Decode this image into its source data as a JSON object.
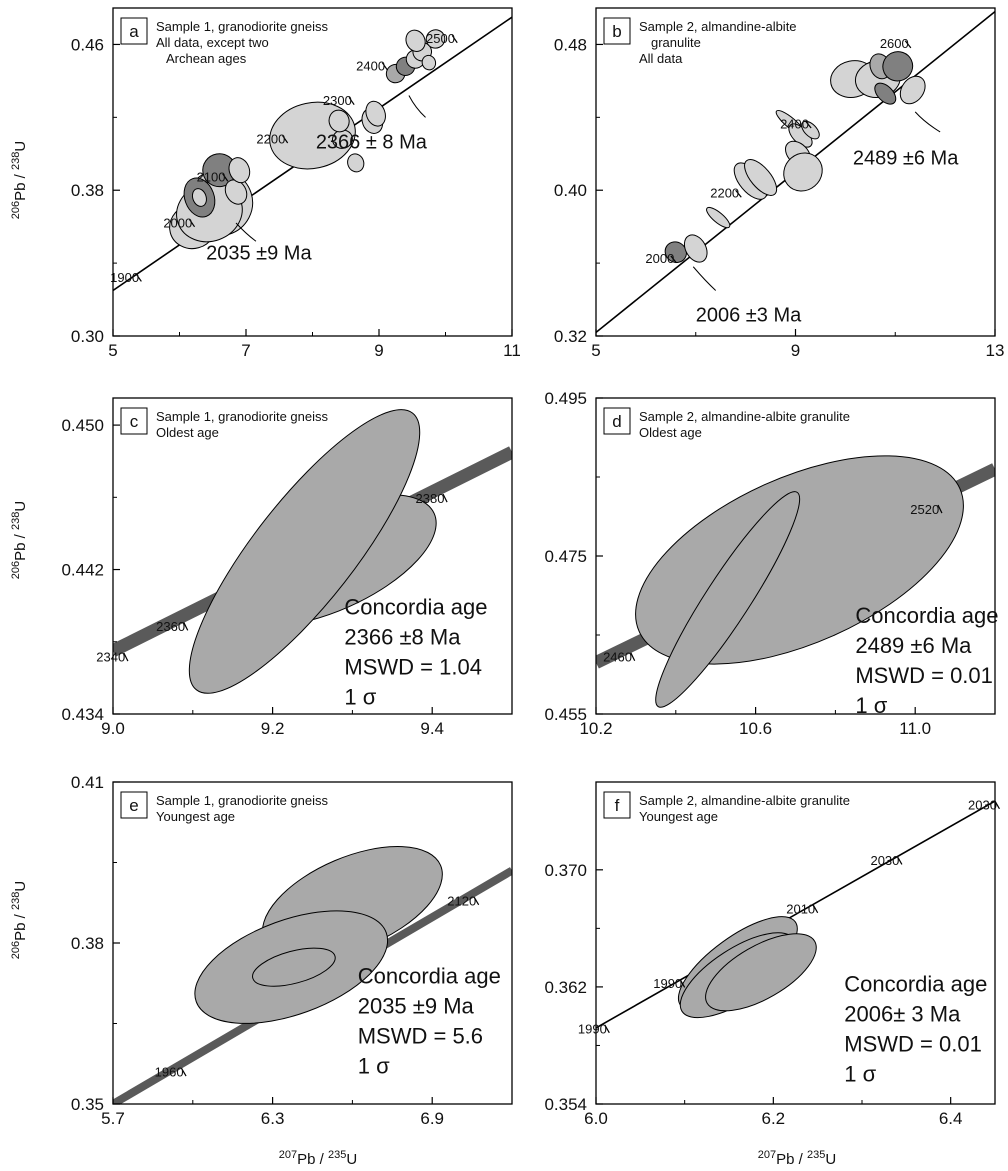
{
  "ylabel": {
    "sup": "206",
    "main": "Pb / ",
    "sup2": "238",
    "end": "U"
  },
  "xlabel": {
    "sup": "207",
    "main": "Pb / ",
    "sup2": "235",
    "end": "U"
  },
  "colors": {
    "ellipse_light": "#d4d4d4",
    "ellipse_mid": "#a9a9a9",
    "ellipse_dark": "#808080",
    "band": "#5a5a5a",
    "stroke": "#000000"
  },
  "chart_data": [
    {
      "id": "a",
      "type": "scatter",
      "letter": "a",
      "title_lines": [
        "Sample 1, granodiorite gneiss",
        "All data, except two",
        "Archean ages"
      ],
      "xlim": [
        5,
        11
      ],
      "ylim": [
        0.3,
        0.48
      ],
      "xticks": [
        "5",
        "7",
        "9",
        "11"
      ],
      "yticks": [
        "0.30",
        "0.38",
        "0.46"
      ],
      "xtick_values": [
        5,
        7,
        9,
        11
      ],
      "ytick_values": [
        0.3,
        0.38,
        0.46
      ],
      "concordia": {
        "style": "line",
        "points": [
          [
            5,
            0.325
          ],
          [
            11,
            0.475
          ]
        ]
      },
      "age_ticks": [
        {
          "label": "1900",
          "x": 5.35,
          "y": 0.334
        },
        {
          "label": "2000",
          "x": 6.15,
          "y": 0.364
        },
        {
          "label": "2100",
          "x": 6.65,
          "y": 0.389
        },
        {
          "label": "2200",
          "x": 7.55,
          "y": 0.41
        },
        {
          "label": "2300",
          "x": 8.55,
          "y": 0.431
        },
        {
          "label": "2400",
          "x": 9.05,
          "y": 0.45
        },
        {
          "label": "2500",
          "x": 10.1,
          "y": 0.465
        }
      ],
      "ellipses": [
        {
          "x": 6.6,
          "y": 0.373,
          "rx": 0.5,
          "ry": 0.018,
          "rot": -18,
          "shade": "light"
        },
        {
          "x": 6.2,
          "y": 0.36,
          "rx": 0.35,
          "ry": 0.012,
          "rot": -15,
          "shade": "light"
        },
        {
          "x": 6.45,
          "y": 0.368,
          "rx": 0.5,
          "ry": 0.016,
          "rot": -20,
          "shade": "light"
        },
        {
          "x": 6.3,
          "y": 0.376,
          "rx": 0.22,
          "ry": 0.011,
          "rot": -20,
          "shade": "dark"
        },
        {
          "x": 6.3,
          "y": 0.376,
          "rx": 0.1,
          "ry": 0.005,
          "rot": -20,
          "shade": "light"
        },
        {
          "x": 6.6,
          "y": 0.391,
          "rx": 0.25,
          "ry": 0.009,
          "rot": -10,
          "shade": "dark"
        },
        {
          "x": 6.85,
          "y": 0.379,
          "rx": 0.15,
          "ry": 0.007,
          "rot": -30,
          "shade": "light"
        },
        {
          "x": 6.9,
          "y": 0.391,
          "rx": 0.15,
          "ry": 0.007,
          "rot": -20,
          "shade": "light"
        },
        {
          "x": 8.0,
          "y": 0.41,
          "rx": 0.65,
          "ry": 0.018,
          "rot": -12,
          "shade": "light"
        },
        {
          "x": 8.45,
          "y": 0.408,
          "rx": 0.15,
          "ry": 0.005,
          "rot": -15,
          "shade": "light"
        },
        {
          "x": 8.4,
          "y": 0.418,
          "rx": 0.15,
          "ry": 0.006,
          "rot": -15,
          "shade": "light"
        },
        {
          "x": 8.9,
          "y": 0.418,
          "rx": 0.15,
          "ry": 0.007,
          "rot": -20,
          "shade": "light"
        },
        {
          "x": 8.95,
          "y": 0.422,
          "rx": 0.14,
          "ry": 0.007,
          "rot": -20,
          "shade": "light"
        },
        {
          "x": 8.65,
          "y": 0.395,
          "rx": 0.12,
          "ry": 0.005,
          "rot": -20,
          "shade": "light"
        },
        {
          "x": 9.25,
          "y": 0.444,
          "rx": 0.14,
          "ry": 0.005,
          "rot": -25,
          "shade": "mid"
        },
        {
          "x": 9.4,
          "y": 0.448,
          "rx": 0.14,
          "ry": 0.005,
          "rot": -25,
          "shade": "dark"
        },
        {
          "x": 9.55,
          "y": 0.452,
          "rx": 0.14,
          "ry": 0.005,
          "rot": -25,
          "shade": "light"
        },
        {
          "x": 9.65,
          "y": 0.456,
          "rx": 0.14,
          "ry": 0.005,
          "rot": -25,
          "shade": "light"
        },
        {
          "x": 9.55,
          "y": 0.462,
          "rx": 0.14,
          "ry": 0.006,
          "rot": -25,
          "shade": "light"
        },
        {
          "x": 9.85,
          "y": 0.463,
          "rx": 0.14,
          "ry": 0.005,
          "rot": -25,
          "shade": "light"
        },
        {
          "x": 9.75,
          "y": 0.45,
          "rx": 0.1,
          "ry": 0.004,
          "rot": -20,
          "shade": "light"
        }
      ],
      "annotations": [
        {
          "text": "2366 ± 8 Ma",
          "x": 8.05,
          "y": 0.403
        },
        {
          "text": "2035 ±9 Ma",
          "x": 6.4,
          "y": 0.342
        }
      ],
      "leaders": [
        [
          [
            9.45,
            0.432
          ],
          [
            9.55,
            0.425
          ],
          [
            9.7,
            0.42
          ]
        ],
        [
          [
            6.85,
            0.362
          ],
          [
            7.0,
            0.356
          ],
          [
            7.15,
            0.352
          ]
        ]
      ]
    },
    {
      "id": "b",
      "type": "scatter",
      "letter": "b",
      "title_lines": [
        "Sample 2, almandine-albite",
        "granulite",
        "All data"
      ],
      "xlim": [
        5,
        13
      ],
      "ylim": [
        0.32,
        0.5
      ],
      "xticks": [
        "5",
        "9",
        "13"
      ],
      "yticks": [
        "0.32",
        "0.40",
        "0.48"
      ],
      "xtick_values": [
        5,
        9,
        13
      ],
      "ytick_values": [
        0.32,
        0.4,
        0.48
      ],
      "concordia": {
        "style": "line",
        "points": [
          [
            5,
            0.322
          ],
          [
            13,
            0.498
          ]
        ]
      },
      "age_ticks": [
        {
          "label": "2000",
          "x": 6.5,
          "y": 0.364
        },
        {
          "label": "2200",
          "x": 7.8,
          "y": 0.4
        },
        {
          "label": "2400",
          "x": 9.2,
          "y": 0.438
        },
        {
          "label": "2600",
          "x": 11.2,
          "y": 0.482
        }
      ],
      "ellipses": [
        {
          "x": 6.6,
          "y": 0.366,
          "rx": 0.2,
          "ry": 0.006,
          "rot": -55,
          "shade": "dark"
        },
        {
          "x": 7.0,
          "y": 0.368,
          "rx": 0.2,
          "ry": 0.008,
          "rot": -30,
          "shade": "light"
        },
        {
          "x": 7.45,
          "y": 0.385,
          "rx": 0.1,
          "ry": 0.008,
          "rot": -50,
          "shade": "light"
        },
        {
          "x": 8.1,
          "y": 0.405,
          "rx": 0.22,
          "ry": 0.012,
          "rot": -40,
          "shade": "light"
        },
        {
          "x": 8.3,
          "y": 0.407,
          "rx": 0.2,
          "ry": 0.012,
          "rot": -40,
          "shade": "light"
        },
        {
          "x": 8.9,
          "y": 0.437,
          "rx": 0.1,
          "ry": 0.01,
          "rot": -50,
          "shade": "light"
        },
        {
          "x": 9.1,
          "y": 0.43,
          "rx": 0.15,
          "ry": 0.008,
          "rot": -45,
          "shade": "light"
        },
        {
          "x": 9.3,
          "y": 0.433,
          "rx": 0.12,
          "ry": 0.006,
          "rot": -45,
          "shade": "light"
        },
        {
          "x": 9.05,
          "y": 0.42,
          "rx": 0.2,
          "ry": 0.008,
          "rot": -45,
          "shade": "light"
        },
        {
          "x": 9.15,
          "y": 0.41,
          "rx": 0.4,
          "ry": 0.01,
          "rot": -40,
          "shade": "light"
        },
        {
          "x": 10.15,
          "y": 0.461,
          "rx": 0.45,
          "ry": 0.01,
          "rot": -12,
          "shade": "light"
        },
        {
          "x": 10.65,
          "y": 0.461,
          "rx": 0.45,
          "ry": 0.01,
          "rot": -10,
          "shade": "light"
        },
        {
          "x": 10.7,
          "y": 0.468,
          "rx": 0.2,
          "ry": 0.007,
          "rot": -20,
          "shade": "mid"
        },
        {
          "x": 11.05,
          "y": 0.468,
          "rx": 0.3,
          "ry": 0.008,
          "rot": -25,
          "shade": "dark"
        },
        {
          "x": 10.8,
          "y": 0.453,
          "rx": 0.15,
          "ry": 0.007,
          "rot": -45,
          "shade": "dark"
        },
        {
          "x": 11.35,
          "y": 0.455,
          "rx": 0.3,
          "ry": 0.006,
          "rot": -55,
          "shade": "light"
        }
      ],
      "annotations": [
        {
          "text": "2489 ±6 Ma",
          "x": 10.15,
          "y": 0.414
        },
        {
          "text": "2006 ±3 Ma",
          "x": 7.0,
          "y": 0.328
        }
      ],
      "leaders": [
        [
          [
            11.4,
            0.443
          ],
          [
            11.6,
            0.437
          ],
          [
            11.9,
            0.432
          ]
        ],
        [
          [
            6.95,
            0.358
          ],
          [
            7.2,
            0.35
          ],
          [
            7.4,
            0.345
          ]
        ]
      ]
    },
    {
      "id": "c",
      "type": "scatter",
      "letter": "c",
      "title_lines": [
        "Sample 1, granodiorite gneiss",
        "Oldest age"
      ],
      "xlim": [
        9.0,
        9.5
      ],
      "ylim": [
        0.434,
        0.4515
      ],
      "xticks": [
        "9.0",
        "9.2",
        "9.4"
      ],
      "yticks": [
        "0.434",
        "0.442",
        "0.450"
      ],
      "xtick_values": [
        9.0,
        9.2,
        9.4
      ],
      "ytick_values": [
        0.434,
        0.442,
        0.45
      ],
      "concordia": {
        "style": "band",
        "width": 13,
        "points": [
          [
            9.0,
            0.4375
          ],
          [
            9.5,
            0.4485
          ]
        ]
      },
      "age_ticks": [
        {
          "label": "2340",
          "x": 9.01,
          "y": 0.4377
        },
        {
          "label": "2360",
          "x": 9.085,
          "y": 0.4394
        },
        {
          "label": "2380",
          "x": 9.41,
          "y": 0.4465
        }
      ],
      "ellipses": [
        {
          "x": 9.27,
          "y": 0.4425,
          "rx": 0.145,
          "ry": 0.0028,
          "rot": -24,
          "shade": "mid"
        },
        {
          "x": 9.24,
          "y": 0.443,
          "rx": 0.22,
          "ry": 0.0028,
          "rot": -52,
          "shade": "mid"
        }
      ],
      "annotations": [],
      "leaders": [],
      "stats": [
        "Concordia age",
        "2366 ±8 Ma",
        "MSWD = 1.04",
        "1 σ"
      ],
      "stats_pos": {
        "x": 9.29,
        "y": 0.4395
      }
    },
    {
      "id": "d",
      "type": "scatter",
      "letter": "d",
      "title_lines": [
        "Sample 2, almandine-albite granulite",
        "Oldest age"
      ],
      "xlim": [
        10.2,
        11.2
      ],
      "ylim": [
        0.455,
        0.495
      ],
      "xticks": [
        "10.2",
        "10.6",
        "11.0"
      ],
      "yticks": [
        "0.455",
        "0.475",
        "0.495"
      ],
      "xtick_values": [
        10.2,
        10.6,
        11.0
      ],
      "ytick_values": [
        0.455,
        0.475,
        0.495
      ],
      "concordia": {
        "style": "band",
        "width": 13,
        "points": [
          [
            10.2,
            0.4615
          ],
          [
            11.2,
            0.486
          ]
        ]
      },
      "age_ticks": [
        {
          "label": "2460",
          "x": 10.28,
          "y": 0.4635
        },
        {
          "label": "2520",
          "x": 11.05,
          "y": 0.4822
        }
      ],
      "ellipses": [
        {
          "x": 10.71,
          "y": 0.4745,
          "rx": 0.44,
          "ry": 0.0105,
          "rot": -24,
          "shade": "mid"
        },
        {
          "x": 10.53,
          "y": 0.4695,
          "rx": 0.32,
          "ry": 0.0028,
          "rot": -57,
          "shade": "mid"
        }
      ],
      "annotations": [],
      "leaders": [],
      "stats": [
        "Concordia age",
        "2489 ±6 Ma",
        "MSWD = 0.01",
        "1 σ"
      ],
      "stats_pos": {
        "x": 10.85,
        "y": 0.4665
      }
    },
    {
      "id": "e",
      "type": "scatter",
      "letter": "e",
      "title_lines": [
        "Sample 1, granodiorite gneiss",
        "Youngest age"
      ],
      "xlim": [
        5.7,
        7.2
      ],
      "ylim": [
        0.35,
        0.41
      ],
      "xticks": [
        "5.7",
        "6.3",
        "6.9"
      ],
      "yticks": [
        "0.35",
        "0.38",
        "0.41"
      ],
      "xtick_values": [
        5.7,
        6.3,
        6.9
      ],
      "ytick_values": [
        0.35,
        0.38,
        0.41
      ],
      "concordia": {
        "style": "band",
        "width": 8,
        "points": [
          [
            5.7,
            0.35
          ],
          [
            7.2,
            0.3935
          ]
        ]
      },
      "age_ticks": [
        {
          "label": "1960",
          "x": 5.95,
          "y": 0.3573
        },
        {
          "label": "2120",
          "x": 7.05,
          "y": 0.3892
        }
      ],
      "ellipses": [
        {
          "x": 6.6,
          "y": 0.3875,
          "rx": 0.36,
          "ry": 0.0085,
          "rot": -23,
          "shade": "mid"
        },
        {
          "x": 6.37,
          "y": 0.3755,
          "rx": 0.38,
          "ry": 0.0088,
          "rot": -20,
          "shade": "mid"
        },
        {
          "x": 6.38,
          "y": 0.3755,
          "rx": 0.16,
          "ry": 0.003,
          "rot": -15,
          "shade": "mid"
        }
      ],
      "annotations": [],
      "leaders": [],
      "stats": [
        "Concordia age",
        "2035 ±9 Ma",
        "MSWD = 5.6",
        "1 σ"
      ],
      "stats_pos": {
        "x": 6.62,
        "y": 0.3725
      }
    },
    {
      "id": "f",
      "type": "scatter",
      "letter": "f",
      "title_lines": [
        "Sample 2, almandine-albite granulite",
        "Youngest age"
      ],
      "xlim": [
        6.0,
        6.45
      ],
      "ylim": [
        0.354,
        0.376
      ],
      "xticks": [
        "6.0",
        "6.2",
        "6.4"
      ],
      "yticks": [
        "0.354",
        "0.362",
        "0.370"
      ],
      "xtick_values": [
        6.0,
        6.2,
        6.4
      ],
      "ytick_values": [
        0.354,
        0.362,
        0.37
      ],
      "concordia": {
        "style": "line",
        "points": [
          [
            6.0,
            0.3592
          ],
          [
            6.45,
            0.3747
          ]
        ]
      },
      "age_ticks": [
        {
          "label": "1990",
          "x": 6.01,
          "y": 0.3594
        },
        {
          "label": "1990",
          "x": 6.095,
          "y": 0.3625
        },
        {
          "label": "2010",
          "x": 6.245,
          "y": 0.3676
        },
        {
          "label": "2030",
          "x": 6.34,
          "y": 0.3709
        },
        {
          "label": "2030",
          "x": 6.45,
          "y": 0.3747
        }
      ],
      "ellipses": [
        {
          "x": 6.16,
          "y": 0.3636,
          "rx": 0.08,
          "ry": 0.0018,
          "rot": -36,
          "shade": "mid"
        },
        {
          "x": 6.16,
          "y": 0.3628,
          "rx": 0.075,
          "ry": 0.0018,
          "rot": -33,
          "shade": "mid"
        },
        {
          "x": 6.186,
          "y": 0.363,
          "rx": 0.07,
          "ry": 0.0018,
          "rot": -30,
          "shade": "mid"
        }
      ],
      "annotations": [],
      "leaders": [],
      "stats": [
        "Concordia age",
        "2006± 3 Ma",
        "MSWD = 0.01",
        "1 σ"
      ],
      "stats_pos": {
        "x": 6.28,
        "y": 0.3617
      }
    }
  ]
}
